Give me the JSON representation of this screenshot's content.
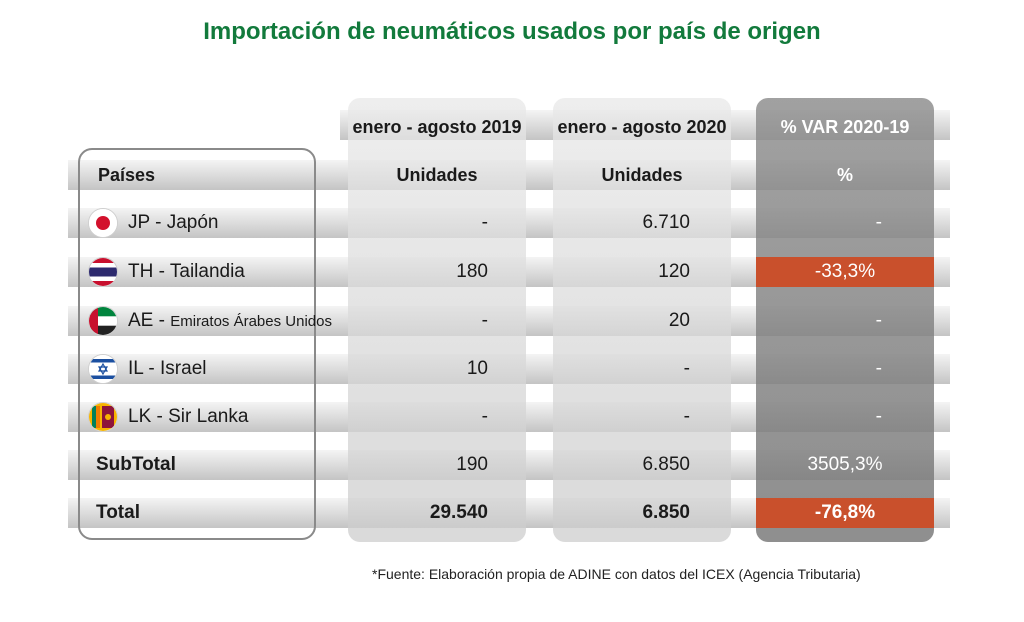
{
  "title": "Importación de neumáticos usados por país de origen",
  "source": "*Fuente: Elaboración propia de ADINE con datos del ICEX (Agencia Tributaria)",
  "colors": {
    "title": "#127a3c",
    "negative_highlight": "#c9502c"
  },
  "chart_data": {
    "type": "table",
    "title": "Importación de neumáticos usados por país de origen",
    "period_headers": [
      "enero - agosto 2019",
      "enero - agosto 2020",
      "% VAR 2020-19"
    ],
    "column_headers": [
      "Países",
      "Unidades",
      "Unidades",
      "%"
    ],
    "rows": [
      {
        "flag": "japan-flag-icon",
        "code": "JP - ",
        "country": "Japón",
        "v2019": "-",
        "v2020": "6.710",
        "var": "-"
      },
      {
        "flag": "thailand-flag-icon",
        "code": "TH - ",
        "country": "Tailandia",
        "v2019": "180",
        "v2020": "120",
        "var": "-33,3%"
      },
      {
        "flag": "uae-flag-icon",
        "code": "AE - ",
        "country": "Emiratos Árabes Unidos",
        "v2019": "-",
        "v2020": "20",
        "var": "-"
      },
      {
        "flag": "israel-flag-icon",
        "code": "IL - ",
        "country": "Israel",
        "v2019": "10",
        "v2020": "-",
        "var": "-"
      },
      {
        "flag": "sri-lanka-flag-icon",
        "code": "LK - ",
        "country": "Sir Lanka",
        "v2019": "-",
        "v2020": "-",
        "var": "-"
      }
    ],
    "subtotal": {
      "label": "SubTotal",
      "v2019": "190",
      "v2020": "6.850",
      "var": "3505,3%"
    },
    "total": {
      "label": "Total",
      "v2019": "29.540",
      "v2020": "6.850",
      "var": "-76,8%"
    }
  }
}
